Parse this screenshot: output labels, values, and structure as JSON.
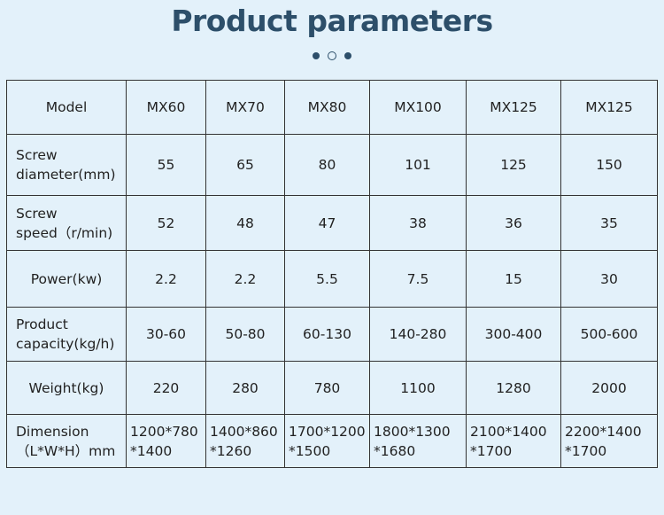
{
  "title": "Product parameters",
  "table": {
    "rows": [
      {
        "label": [
          "Model"
        ],
        "values": [
          [
            "MX60"
          ],
          [
            "MX70"
          ],
          [
            "MX80"
          ],
          [
            "MX100"
          ],
          [
            "MX125"
          ],
          [
            "MX125"
          ]
        ]
      },
      {
        "label": [
          "Screw",
          "diameter(mm)"
        ],
        "values": [
          [
            "55"
          ],
          [
            "65"
          ],
          [
            "80"
          ],
          [
            "101"
          ],
          [
            "125"
          ],
          [
            "150"
          ]
        ]
      },
      {
        "label": [
          "Screw",
          "speed（r/min)"
        ],
        "values": [
          [
            "52"
          ],
          [
            "48"
          ],
          [
            "47"
          ],
          [
            "38"
          ],
          [
            "36"
          ],
          [
            "35"
          ]
        ]
      },
      {
        "label": [
          "Power(kw)"
        ],
        "values": [
          [
            "2.2"
          ],
          [
            "2.2"
          ],
          [
            "5.5"
          ],
          [
            "7.5"
          ],
          [
            "15"
          ],
          [
            "30"
          ]
        ]
      },
      {
        "label": [
          "Product",
          "capacity(kg/h)"
        ],
        "values": [
          [
            "30-60"
          ],
          [
            "50-80"
          ],
          [
            "60-130"
          ],
          [
            "140-280"
          ],
          [
            "300-400"
          ],
          [
            "500-600"
          ]
        ]
      },
      {
        "label": [
          "Weight(kg)"
        ],
        "values": [
          [
            "220"
          ],
          [
            "280"
          ],
          [
            "780"
          ],
          [
            "1100"
          ],
          [
            "1280"
          ],
          [
            "2000"
          ]
        ]
      },
      {
        "label": [
          "Dimension",
          "（L*W*H）mm"
        ],
        "values": [
          [
            "1200*780",
            "*1400"
          ],
          [
            "1400*860",
            "*1260"
          ],
          [
            "1700*1200",
            "*1500"
          ],
          [
            "1800*1300",
            "*1680"
          ],
          [
            "2100*1400",
            "*1700"
          ],
          [
            "2200*1400",
            "*1700"
          ]
        ]
      }
    ]
  }
}
